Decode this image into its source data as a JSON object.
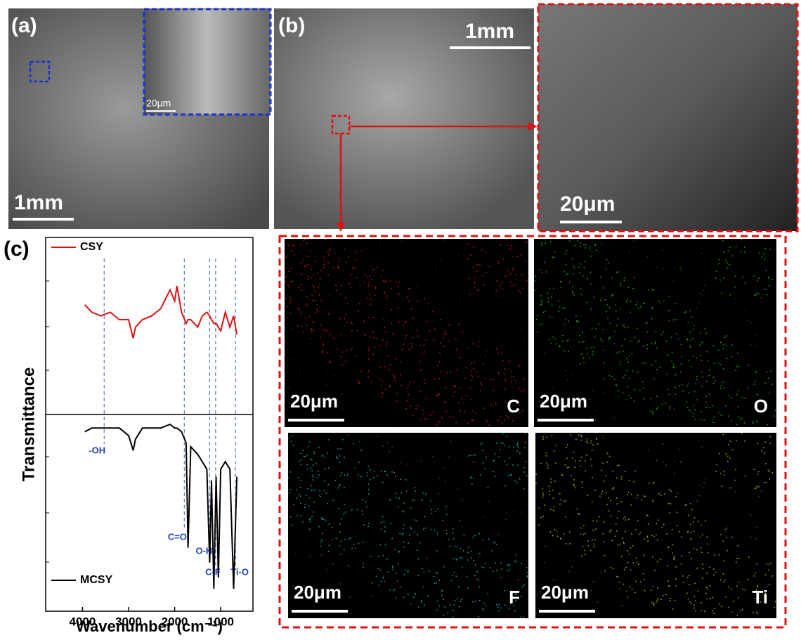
{
  "panels": {
    "a": {
      "label": "(a)",
      "scale_bar": "1mm",
      "inset_scale_bar": "20μm"
    },
    "b": {
      "label": "(b)",
      "scale_bar": "1mm",
      "zoom_scale_bar": "20μm"
    },
    "eds": {
      "maps": [
        {
          "element": "C",
          "scale_bar": "20μm",
          "color": "#e02020"
        },
        {
          "element": "O",
          "scale_bar": "20μm",
          "color": "#20c020"
        },
        {
          "element": "F",
          "scale_bar": "20μm",
          "color": "#20c0c0"
        },
        {
          "element": "Ti",
          "scale_bar": "20μm",
          "color": "#c8c020"
        }
      ]
    },
    "c": {
      "label": "(c)"
    }
  },
  "chart_data": {
    "type": "line",
    "xlabel": "Wavenumber (cm⁻¹)",
    "ylabel": "Transmittance",
    "xlim": [
      4800,
      300
    ],
    "xticks": [
      4000,
      3000,
      2000,
      1000
    ],
    "ylim": [
      0,
      100
    ],
    "x": [
      3950,
      3800,
      3600,
      3400,
      3200,
      3000,
      2900,
      2850,
      2700,
      2500,
      2300,
      2100,
      2000,
      1950,
      1850,
      1750,
      1710,
      1650,
      1500,
      1400,
      1300,
      1240,
      1200,
      1150,
      1100,
      1050,
      1000,
      900,
      800,
      720,
      650
    ],
    "series": [
      {
        "name": "CSY",
        "color": "#e01010",
        "values": [
          82,
          80,
          79,
          80,
          78,
          78,
          73,
          76,
          78,
          79,
          81,
          86,
          83,
          87,
          80,
          77,
          78,
          78,
          76,
          79,
          80,
          79,
          78,
          77,
          77,
          76,
          75,
          80,
          76,
          79,
          74
        ]
      },
      {
        "name": "MCSY",
        "color": "#000000",
        "values": [
          48,
          49,
          49,
          49,
          49,
          47,
          43,
          46,
          49,
          49,
          49,
          50,
          49,
          49,
          48,
          45,
          17,
          44,
          42,
          40,
          38,
          13,
          35,
          6,
          36,
          9,
          38,
          40,
          38,
          6,
          36
        ]
      }
    ],
    "annotations": [
      {
        "label": "-OH",
        "x": 3530
      },
      {
        "label": "C=O",
        "x": 1790
      },
      {
        "label": "O-H",
        "x": 1240
      },
      {
        "label": "C-F",
        "x": 1110
      },
      {
        "label": "Ti-O",
        "x": 680
      }
    ]
  }
}
